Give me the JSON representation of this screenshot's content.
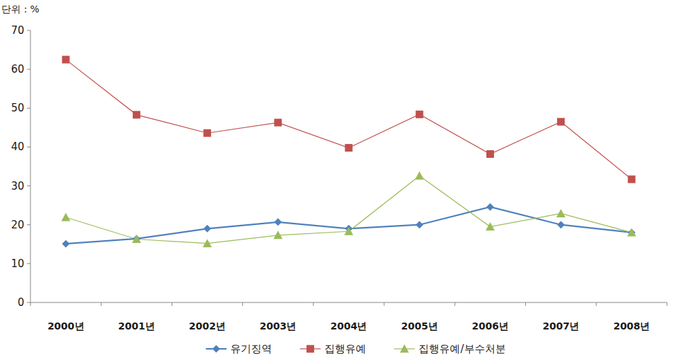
{
  "chart_data": {
    "type": "line",
    "y_label": "단위 : %",
    "categories": [
      "2000년",
      "2001년",
      "2002년",
      "2003년",
      "2004년",
      "2005년",
      "2006년",
      "2007년",
      "2008년"
    ],
    "series": [
      {
        "name": "유기징역",
        "color": "#4f81bd",
        "marker": "diamond",
        "values": [
          15.1,
          16.4,
          19.0,
          20.7,
          19.0,
          20.0,
          24.6,
          20.0,
          18.0
        ]
      },
      {
        "name": "집행유예",
        "color": "#c0504d",
        "marker": "square",
        "values": [
          62.5,
          48.3,
          43.6,
          46.3,
          39.8,
          48.4,
          38.2,
          46.5,
          31.7
        ]
      },
      {
        "name": "집행유예/부수처분",
        "color": "#9bbb59",
        "marker": "triangle",
        "values": [
          21.9,
          16.3,
          15.2,
          17.3,
          18.3,
          32.6,
          19.5,
          22.9,
          18.0
        ]
      }
    ],
    "ylim": [
      0,
      70
    ],
    "yticks": [
      0,
      10,
      20,
      30,
      40,
      50,
      60,
      70
    ],
    "grid": false,
    "legend": "bottom"
  }
}
